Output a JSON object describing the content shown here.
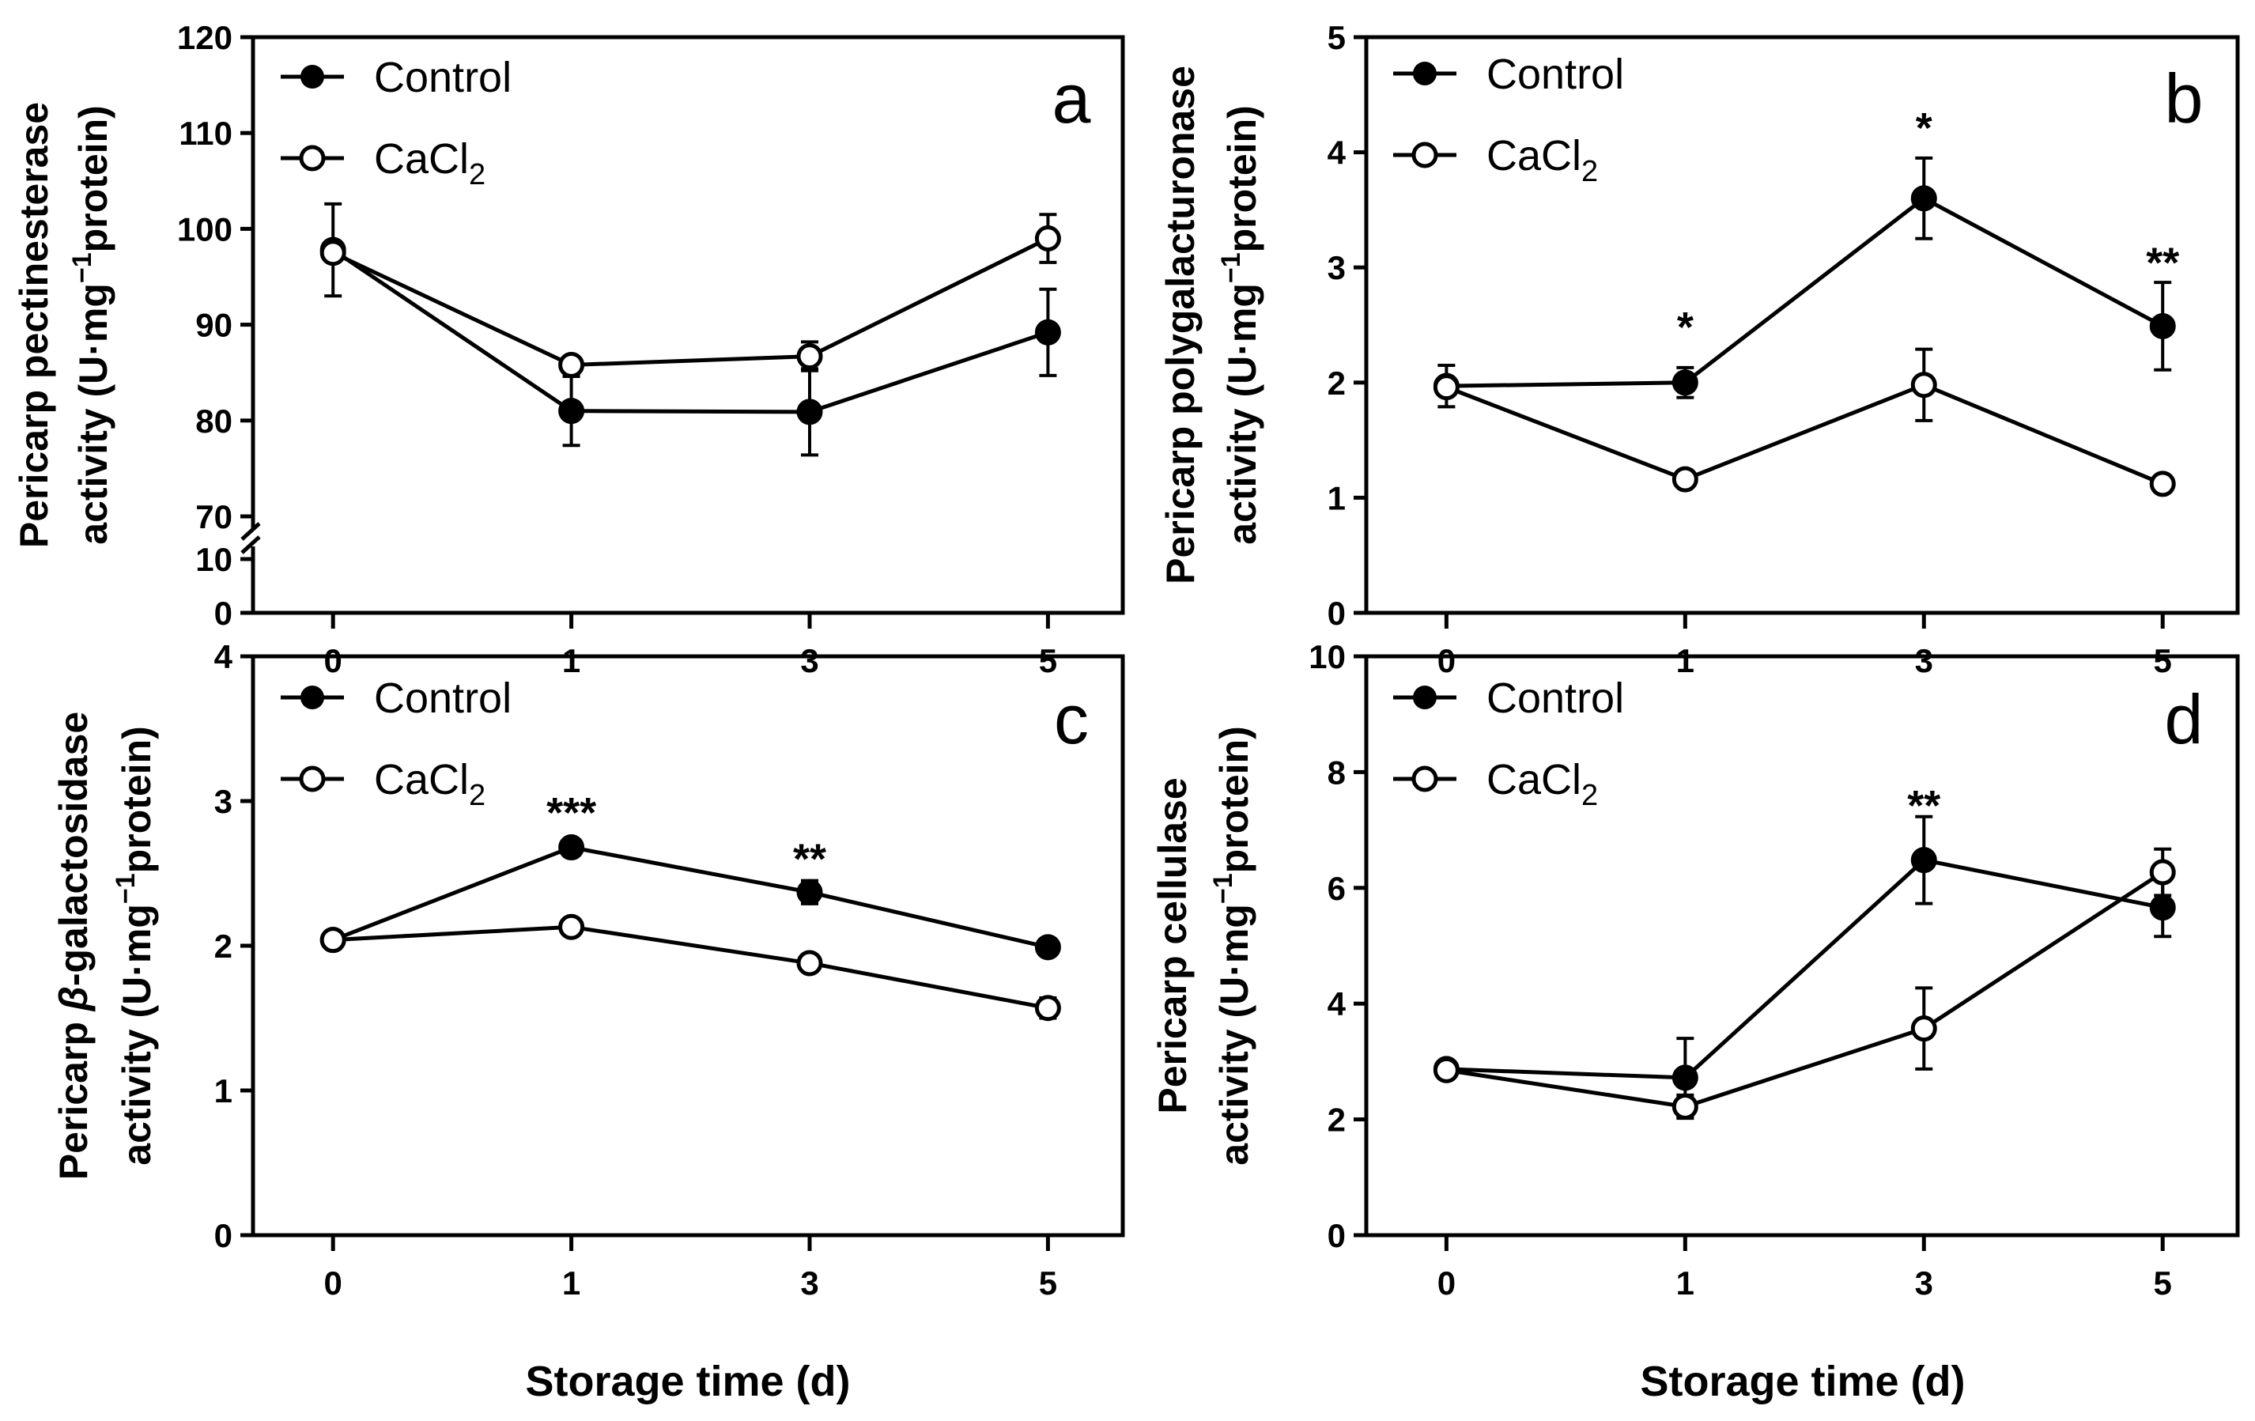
{
  "xlabel": "Storage time (d)",
  "series_names": [
    "Control",
    "CaCl2"
  ],
  "chart_data": [
    {
      "type": "line",
      "panel": "a",
      "ylabel_line1": "Pericarp pectinesterase",
      "ylabel_line2_pre": "activity (U·mg",
      "ylabel_line2_sup": "−1",
      "ylabel_line2_post": "protein)",
      "categories": [
        "0",
        "1",
        "3",
        "5"
      ],
      "axis_break": true,
      "ylim_lower": [
        0,
        10
      ],
      "ylim_upper": [
        70,
        120
      ],
      "yticks_lower": [
        "0",
        "10"
      ],
      "yticks_upper": [
        "70",
        "80",
        "90",
        "100",
        "110",
        "120"
      ],
      "series": [
        {
          "name": "Control",
          "marker": "filled",
          "values": [
            97.8,
            81.0,
            80.9,
            89.2
          ],
          "errors": [
            4.8,
            3.6,
            4.5,
            4.5
          ]
        },
        {
          "name": "CaCl2",
          "marker": "open",
          "values": [
            97.5,
            85.8,
            86.7,
            99.0
          ],
          "errors": [
            0.5,
            0.4,
            1.5,
            2.5
          ]
        }
      ],
      "significance": []
    },
    {
      "type": "line",
      "panel": "b",
      "ylabel_line1": "Pericarp polygalacturonase",
      "ylabel_line2_pre": "activity (U·mg",
      "ylabel_line2_sup": "−1",
      "ylabel_line2_post": "protein)",
      "categories": [
        "0",
        "1",
        "3",
        "5"
      ],
      "ylim": [
        0,
        5
      ],
      "yticks": [
        "0",
        "1",
        "2",
        "3",
        "4",
        "5"
      ],
      "series": [
        {
          "name": "Control",
          "marker": "filled",
          "values": [
            1.97,
            2.0,
            3.6,
            2.49
          ],
          "errors": [
            0.18,
            0.13,
            0.35,
            0.38
          ]
        },
        {
          "name": "CaCl2",
          "marker": "open",
          "values": [
            1.96,
            1.16,
            1.98,
            1.12
          ],
          "errors": [
            0.05,
            0.04,
            0.31,
            0.05
          ]
        }
      ],
      "significance": [
        {
          "category": "1",
          "label": "*",
          "y": 2.52
        },
        {
          "category": "3",
          "label": "*",
          "y": 4.25
        },
        {
          "category": "5",
          "label": "**",
          "y": 3.08
        }
      ]
    },
    {
      "type": "line",
      "panel": "c",
      "ylabel_line1_pre": "Pericarp ",
      "ylabel_line1_greek": "β",
      "ylabel_line1_post": "-galactosidase",
      "ylabel_line2_pre": "activity (U·mg",
      "ylabel_line2_sup": "−1",
      "ylabel_line2_post": "protein)",
      "categories": [
        "0",
        "1",
        "3",
        "5"
      ],
      "ylim": [
        0,
        4
      ],
      "yticks": [
        "0",
        "1",
        "2",
        "3",
        "4"
      ],
      "series": [
        {
          "name": "Control",
          "marker": "filled",
          "values": [
            2.04,
            2.68,
            2.37,
            1.99
          ],
          "errors": [
            0.02,
            0.02,
            0.08,
            0.02
          ]
        },
        {
          "name": "CaCl2",
          "marker": "open",
          "values": [
            2.04,
            2.13,
            1.88,
            1.57
          ],
          "errors": [
            0.02,
            0.03,
            0.03,
            0.07
          ]
        }
      ],
      "significance": [
        {
          "category": "1",
          "label": "***",
          "y": 2.95
        },
        {
          "category": "3",
          "label": "**",
          "y": 2.63
        }
      ]
    },
    {
      "type": "line",
      "panel": "d",
      "ylabel_line1": "Pericarp cellulase",
      "ylabel_line2_pre": "activity (U·mg",
      "ylabel_line2_sup": "−1",
      "ylabel_line2_post": "protein)",
      "categories": [
        "0",
        "1",
        "3",
        "5"
      ],
      "ylim": [
        0,
        10
      ],
      "yticks": [
        "0",
        "2",
        "4",
        "6",
        "8",
        "10"
      ],
      "series": [
        {
          "name": "Control",
          "marker": "filled",
          "values": [
            2.87,
            2.72,
            6.48,
            5.66
          ],
          "errors": [
            0.08,
            0.68,
            0.75,
            0.5
          ]
        },
        {
          "name": "CaCl2",
          "marker": "open",
          "values": [
            2.85,
            2.22,
            3.57,
            6.27
          ],
          "errors": [
            0.08,
            0.2,
            0.7,
            0.4
          ]
        }
      ],
      "significance": [
        {
          "category": "3",
          "label": "**",
          "y": 7.5
        }
      ]
    }
  ]
}
